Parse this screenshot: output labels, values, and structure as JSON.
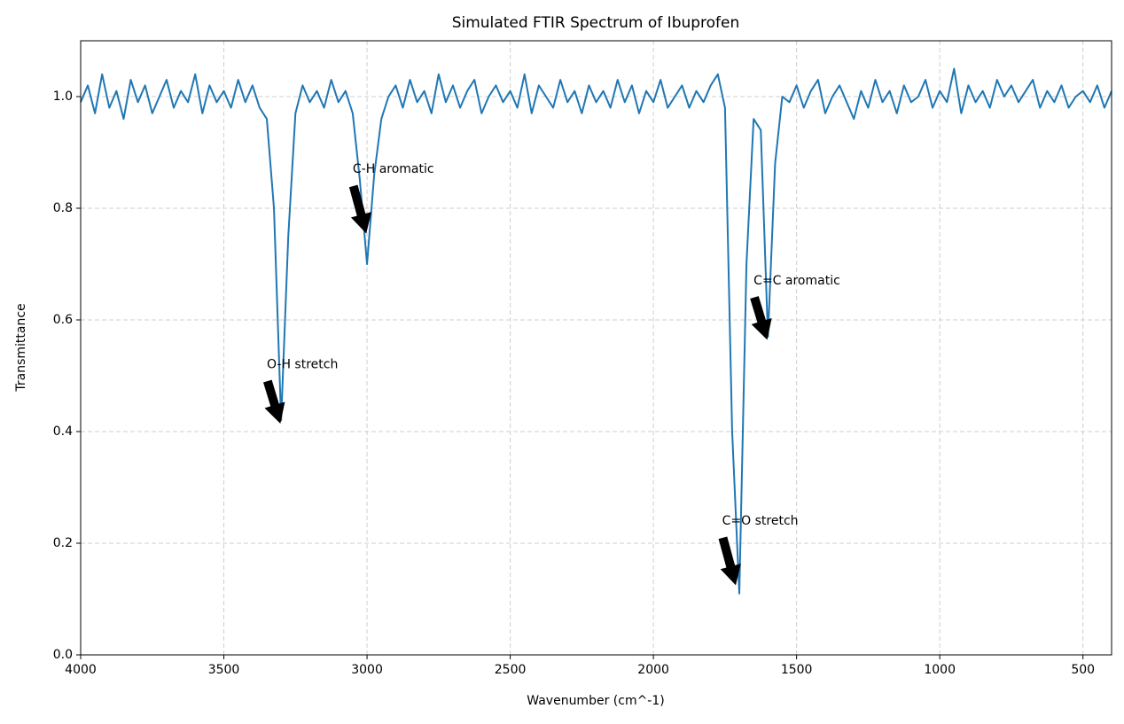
{
  "chart_data": {
    "type": "line",
    "title": "Simulated FTIR Spectrum of Ibuprofen",
    "xlabel": "Wavenumber (cm^-1)",
    "ylabel": "Transmittance",
    "color": "#1f77b4",
    "grid": true,
    "xlim": [
      4000,
      400
    ],
    "ylim": [
      0,
      1.1
    ],
    "xticks": [
      4000,
      3500,
      3000,
      2500,
      2000,
      1500,
      1000,
      500
    ],
    "yticks": [
      {
        "value": 0,
        "label": "0.0"
      },
      0.2,
      0.4,
      0.6,
      0.8,
      {
        "value": 1,
        "label": "1.0"
      }
    ],
    "x": [
      4000,
      3975,
      3950,
      3925,
      3900,
      3875,
      3850,
      3825,
      3800,
      3775,
      3750,
      3725,
      3700,
      3675,
      3650,
      3625,
      3600,
      3575,
      3550,
      3525,
      3500,
      3475,
      3450,
      3425,
      3400,
      3375,
      3350,
      3325,
      3300,
      3275,
      3250,
      3225,
      3200,
      3175,
      3150,
      3125,
      3100,
      3075,
      3050,
      3025,
      3000,
      2975,
      2950,
      2925,
      2900,
      2875,
      2850,
      2825,
      2800,
      2775,
      2750,
      2725,
      2700,
      2675,
      2650,
      2625,
      2600,
      2575,
      2550,
      2525,
      2500,
      2475,
      2450,
      2425,
      2400,
      2375,
      2350,
      2325,
      2300,
      2275,
      2250,
      2225,
      2200,
      2175,
      2150,
      2125,
      2100,
      2075,
      2050,
      2025,
      2000,
      1975,
      1950,
      1925,
      1900,
      1875,
      1850,
      1825,
      1800,
      1775,
      1750,
      1725,
      1700,
      1675,
      1650,
      1625,
      1600,
      1575,
      1550,
      1525,
      1500,
      1475,
      1450,
      1425,
      1400,
      1375,
      1350,
      1325,
      1300,
      1275,
      1250,
      1225,
      1200,
      1175,
      1150,
      1125,
      1100,
      1075,
      1050,
      1025,
      1000,
      975,
      950,
      925,
      900,
      875,
      850,
      825,
      800,
      775,
      750,
      725,
      700,
      675,
      650,
      625,
      600,
      575,
      550,
      525,
      500,
      475,
      450,
      425,
      400
    ],
    "values": [
      0.99,
      1.02,
      0.97,
      1.04,
      0.98,
      1.01,
      0.96,
      1.03,
      0.99,
      1.02,
      0.97,
      1.0,
      1.03,
      0.98,
      1.01,
      0.99,
      1.04,
      0.97,
      1.02,
      0.99,
      1.01,
      0.98,
      1.03,
      0.99,
      1.02,
      0.98,
      0.96,
      0.8,
      0.42,
      0.75,
      0.97,
      1.02,
      0.99,
      1.01,
      0.98,
      1.03,
      0.99,
      1.01,
      0.97,
      0.85,
      0.7,
      0.86,
      0.96,
      1.0,
      1.02,
      0.98,
      1.03,
      0.99,
      1.01,
      0.97,
      1.04,
      0.99,
      1.02,
      0.98,
      1.01,
      1.03,
      0.97,
      1.0,
      1.02,
      0.99,
      1.01,
      0.98,
      1.04,
      0.97,
      1.02,
      1.0,
      0.98,
      1.03,
      0.99,
      1.01,
      0.97,
      1.02,
      0.99,
      1.01,
      0.98,
      1.03,
      0.99,
      1.02,
      0.97,
      1.01,
      0.99,
      1.03,
      0.98,
      1.0,
      1.02,
      0.98,
      1.01,
      0.99,
      1.02,
      1.04,
      0.98,
      0.4,
      0.11,
      0.7,
      0.96,
      0.94,
      0.57,
      0.88,
      1.0,
      0.99,
      1.02,
      0.98,
      1.01,
      1.03,
      0.97,
      1.0,
      1.02,
      0.99,
      0.96,
      1.01,
      0.98,
      1.03,
      0.99,
      1.01,
      0.97,
      1.02,
      0.99,
      1.0,
      1.03,
      0.98,
      1.01,
      0.99,
      1.05,
      0.97,
      1.02,
      0.99,
      1.01,
      0.98,
      1.03,
      1.0,
      1.02,
      0.99,
      1.01,
      1.03,
      0.98,
      1.01,
      0.99,
      1.02,
      0.98,
      1.0,
      1.01,
      0.99,
      1.02,
      0.98,
      1.01
    ],
    "annotations": [
      {
        "text": "O-H stretch",
        "x": 3300,
        "y": 0.41,
        "text_x": 3350,
        "text_y": 0.52
      },
      {
        "text": "C-H aromatic",
        "x": 3000,
        "y": 0.75,
        "text_x": 3050,
        "text_y": 0.87
      },
      {
        "text": "C=O stretch",
        "x": 1710,
        "y": 0.12,
        "text_x": 1760,
        "text_y": 0.24
      },
      {
        "text": "C=C aromatic",
        "x": 1600,
        "y": 0.56,
        "text_x": 1650,
        "text_y": 0.67
      }
    ]
  }
}
